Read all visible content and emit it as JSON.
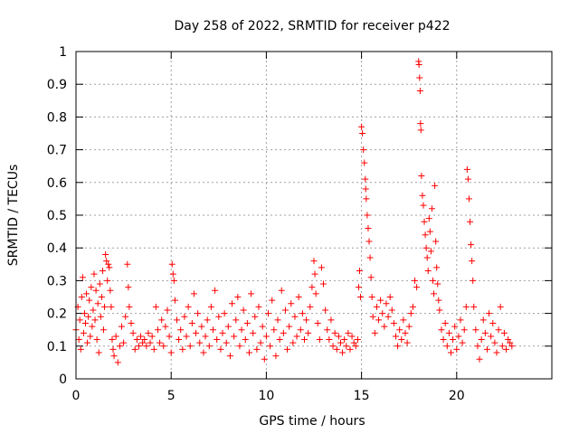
{
  "chart_data": {
    "type": "scatter",
    "title": "Day 258 of 2022, SRMTID for receiver p422",
    "xlabel": "GPS time / hours",
    "ylabel": "SRMTID / TECUs",
    "xlim": [
      0,
      25
    ],
    "ylim": [
      0,
      1
    ],
    "xticks": [
      0,
      5,
      10,
      15,
      20
    ],
    "xtick_labels": [
      "0",
      "5",
      "10",
      "15",
      "20"
    ],
    "yticks": [
      0,
      0.1,
      0.2,
      0.3,
      0.4,
      0.5,
      0.6,
      0.7,
      0.8,
      0.9,
      1
    ],
    "ytick_labels": [
      "0",
      "0.1",
      "0.2",
      "0.3",
      "0.4",
      "0.5",
      "0.6",
      "0.7",
      "0.8",
      "0.9",
      "1"
    ],
    "grid": true,
    "marker": "+",
    "color": "#ff0000",
    "series": [
      {
        "name": "SRMTID",
        "points": [
          [
            0.0,
            0.15
          ],
          [
            0.1,
            0.22
          ],
          [
            0.15,
            0.12
          ],
          [
            0.2,
            0.18
          ],
          [
            0.25,
            0.09
          ],
          [
            0.3,
            0.25
          ],
          [
            0.35,
            0.31
          ],
          [
            0.4,
            0.14
          ],
          [
            0.45,
            0.2
          ],
          [
            0.5,
            0.17
          ],
          [
            0.55,
            0.26
          ],
          [
            0.6,
            0.11
          ],
          [
            0.65,
            0.19
          ],
          [
            0.7,
            0.24
          ],
          [
            0.75,
            0.13
          ],
          [
            0.8,
            0.28
          ],
          [
            0.85,
            0.16
          ],
          [
            0.9,
            0.21
          ],
          [
            0.95,
            0.32
          ],
          [
            1.0,
            0.18
          ],
          [
            1.05,
            0.27
          ],
          [
            1.1,
            0.12
          ],
          [
            1.15,
            0.23
          ],
          [
            1.2,
            0.08
          ],
          [
            1.25,
            0.29
          ],
          [
            1.3,
            0.19
          ],
          [
            1.35,
            0.25
          ],
          [
            1.4,
            0.33
          ],
          [
            1.45,
            0.15
          ],
          [
            1.5,
            0.22
          ],
          [
            1.55,
            0.38
          ],
          [
            1.6,
            0.36
          ],
          [
            1.65,
            0.3
          ],
          [
            1.7,
            0.35
          ],
          [
            1.75,
            0.34
          ],
          [
            1.8,
            0.27
          ],
          [
            1.85,
            0.22
          ],
          [
            1.9,
            0.12
          ],
          [
            1.95,
            0.09
          ],
          [
            2.0,
            0.07
          ],
          [
            2.1,
            0.13
          ],
          [
            2.2,
            0.05
          ],
          [
            2.3,
            0.1
          ],
          [
            2.4,
            0.16
          ],
          [
            2.5,
            0.11
          ],
          [
            2.6,
            0.19
          ],
          [
            2.7,
            0.35
          ],
          [
            2.75,
            0.28
          ],
          [
            2.8,
            0.22
          ],
          [
            2.9,
            0.17
          ],
          [
            3.0,
            0.14
          ],
          [
            3.1,
            0.09
          ],
          [
            3.2,
            0.12
          ],
          [
            3.3,
            0.1
          ],
          [
            3.4,
            0.13
          ],
          [
            3.5,
            0.11
          ],
          [
            3.6,
            0.12
          ],
          [
            3.7,
            0.1
          ],
          [
            3.8,
            0.14
          ],
          [
            3.9,
            0.11
          ],
          [
            4.0,
            0.13
          ],
          [
            4.1,
            0.09
          ],
          [
            4.2,
            0.22
          ],
          [
            4.3,
            0.15
          ],
          [
            4.4,
            0.11
          ],
          [
            4.5,
            0.18
          ],
          [
            4.6,
            0.1
          ],
          [
            4.7,
            0.16
          ],
          [
            4.8,
            0.21
          ],
          [
            4.9,
            0.13
          ],
          [
            5.0,
            0.08
          ],
          [
            5.05,
            0.35
          ],
          [
            5.1,
            0.32
          ],
          [
            5.15,
            0.3
          ],
          [
            5.2,
            0.24
          ],
          [
            5.3,
            0.18
          ],
          [
            5.4,
            0.12
          ],
          [
            5.5,
            0.15
          ],
          [
            5.6,
            0.09
          ],
          [
            5.7,
            0.19
          ],
          [
            5.8,
            0.13
          ],
          [
            5.9,
            0.22
          ],
          [
            6.0,
            0.1
          ],
          [
            6.1,
            0.17
          ],
          [
            6.2,
            0.26
          ],
          [
            6.3,
            0.14
          ],
          [
            6.4,
            0.2
          ],
          [
            6.5,
            0.11
          ],
          [
            6.6,
            0.16
          ],
          [
            6.7,
            0.08
          ],
          [
            6.8,
            0.13
          ],
          [
            6.9,
            0.18
          ],
          [
            7.0,
            0.1
          ],
          [
            7.1,
            0.22
          ],
          [
            7.2,
            0.15
          ],
          [
            7.3,
            0.27
          ],
          [
            7.4,
            0.12
          ],
          [
            7.5,
            0.19
          ],
          [
            7.6,
            0.09
          ],
          [
            7.7,
            0.14
          ],
          [
            7.8,
            0.2
          ],
          [
            7.9,
            0.11
          ],
          [
            8.0,
            0.16
          ],
          [
            8.1,
            0.07
          ],
          [
            8.2,
            0.23
          ],
          [
            8.3,
            0.13
          ],
          [
            8.4,
            0.18
          ],
          [
            8.5,
            0.25
          ],
          [
            8.6,
            0.1
          ],
          [
            8.7,
            0.15
          ],
          [
            8.8,
            0.21
          ],
          [
            8.9,
            0.12
          ],
          [
            9.0,
            0.17
          ],
          [
            9.1,
            0.08
          ],
          [
            9.2,
            0.26
          ],
          [
            9.3,
            0.14
          ],
          [
            9.4,
            0.19
          ],
          [
            9.5,
            0.09
          ],
          [
            9.6,
            0.22
          ],
          [
            9.7,
            0.11
          ],
          [
            9.8,
            0.16
          ],
          [
            9.9,
            0.06
          ],
          [
            10.0,
            0.13
          ],
          [
            10.1,
            0.2
          ],
          [
            10.2,
            0.1
          ],
          [
            10.3,
            0.24
          ],
          [
            10.4,
            0.15
          ],
          [
            10.5,
            0.07
          ],
          [
            10.6,
            0.18
          ],
          [
            10.7,
            0.12
          ],
          [
            10.8,
            0.27
          ],
          [
            10.9,
            0.14
          ],
          [
            11.0,
            0.21
          ],
          [
            11.1,
            0.09
          ],
          [
            11.2,
            0.16
          ],
          [
            11.3,
            0.23
          ],
          [
            11.4,
            0.11
          ],
          [
            11.5,
            0.19
          ],
          [
            11.6,
            0.13
          ],
          [
            11.7,
            0.25
          ],
          [
            11.8,
            0.15
          ],
          [
            11.9,
            0.2
          ],
          [
            12.0,
            0.12
          ],
          [
            12.1,
            0.18
          ],
          [
            12.2,
            0.14
          ],
          [
            12.3,
            0.22
          ],
          [
            12.4,
            0.28
          ],
          [
            12.5,
            0.36
          ],
          [
            12.55,
            0.32
          ],
          [
            12.6,
            0.26
          ],
          [
            12.7,
            0.17
          ],
          [
            12.8,
            0.12
          ],
          [
            12.9,
            0.34
          ],
          [
            13.0,
            0.29
          ],
          [
            13.1,
            0.21
          ],
          [
            13.2,
            0.15
          ],
          [
            13.3,
            0.12
          ],
          [
            13.4,
            0.18
          ],
          [
            13.5,
            0.1
          ],
          [
            13.6,
            0.14
          ],
          [
            13.7,
            0.09
          ],
          [
            13.8,
            0.13
          ],
          [
            13.9,
            0.11
          ],
          [
            14.0,
            0.08
          ],
          [
            14.1,
            0.12
          ],
          [
            14.2,
            0.1
          ],
          [
            14.3,
            0.14
          ],
          [
            14.4,
            0.09
          ],
          [
            14.5,
            0.13
          ],
          [
            14.6,
            0.11
          ],
          [
            14.7,
            0.1
          ],
          [
            14.8,
            0.12
          ],
          [
            14.85,
            0.28
          ],
          [
            14.9,
            0.33
          ],
          [
            14.95,
            0.25
          ],
          [
            15.0,
            0.77
          ],
          [
            15.05,
            0.75
          ],
          [
            15.1,
            0.7
          ],
          [
            15.15,
            0.66
          ],
          [
            15.2,
            0.61
          ],
          [
            15.22,
            0.58
          ],
          [
            15.25,
            0.55
          ],
          [
            15.3,
            0.5
          ],
          [
            15.35,
            0.46
          ],
          [
            15.4,
            0.42
          ],
          [
            15.45,
            0.37
          ],
          [
            15.5,
            0.31
          ],
          [
            15.55,
            0.25
          ],
          [
            15.6,
            0.19
          ],
          [
            15.7,
            0.14
          ],
          [
            15.8,
            0.22
          ],
          [
            15.9,
            0.18
          ],
          [
            16.0,
            0.24
          ],
          [
            16.1,
            0.2
          ],
          [
            16.2,
            0.16
          ],
          [
            16.3,
            0.23
          ],
          [
            16.4,
            0.19
          ],
          [
            16.5,
            0.25
          ],
          [
            16.6,
            0.21
          ],
          [
            16.7,
            0.17
          ],
          [
            16.8,
            0.13
          ],
          [
            16.9,
            0.1
          ],
          [
            17.0,
            0.15
          ],
          [
            17.1,
            0.12
          ],
          [
            17.2,
            0.18
          ],
          [
            17.3,
            0.14
          ],
          [
            17.4,
            0.11
          ],
          [
            17.5,
            0.16
          ],
          [
            17.6,
            0.2
          ],
          [
            17.7,
            0.22
          ],
          [
            17.8,
            0.3
          ],
          [
            17.9,
            0.28
          ],
          [
            18.0,
            0.97
          ],
          [
            18.02,
            0.96
          ],
          [
            18.05,
            0.92
          ],
          [
            18.08,
            0.88
          ],
          [
            18.1,
            0.78
          ],
          [
            18.12,
            0.76
          ],
          [
            18.15,
            0.62
          ],
          [
            18.2,
            0.56
          ],
          [
            18.25,
            0.53
          ],
          [
            18.3,
            0.48
          ],
          [
            18.35,
            0.44
          ],
          [
            18.4,
            0.4
          ],
          [
            18.45,
            0.37
          ],
          [
            18.5,
            0.33
          ],
          [
            18.55,
            0.49
          ],
          [
            18.6,
            0.45
          ],
          [
            18.65,
            0.39
          ],
          [
            18.7,
            0.52
          ],
          [
            18.75,
            0.3
          ],
          [
            18.8,
            0.26
          ],
          [
            18.85,
            0.59
          ],
          [
            18.9,
            0.42
          ],
          [
            18.95,
            0.34
          ],
          [
            19.0,
            0.29
          ],
          [
            19.05,
            0.24
          ],
          [
            19.1,
            0.21
          ],
          [
            19.2,
            0.15
          ],
          [
            19.3,
            0.12
          ],
          [
            19.4,
            0.17
          ],
          [
            19.5,
            0.1
          ],
          [
            19.6,
            0.14
          ],
          [
            19.7,
            0.08
          ],
          [
            19.8,
            0.12
          ],
          [
            19.9,
            0.16
          ],
          [
            20.0,
            0.09
          ],
          [
            20.1,
            0.13
          ],
          [
            20.2,
            0.18
          ],
          [
            20.3,
            0.11
          ],
          [
            20.4,
            0.15
          ],
          [
            20.5,
            0.22
          ],
          [
            20.55,
            0.64
          ],
          [
            20.6,
            0.61
          ],
          [
            20.65,
            0.55
          ],
          [
            20.7,
            0.48
          ],
          [
            20.75,
            0.41
          ],
          [
            20.8,
            0.36
          ],
          [
            20.85,
            0.3
          ],
          [
            20.9,
            0.22
          ],
          [
            21.0,
            0.15
          ],
          [
            21.1,
            0.1
          ],
          [
            21.2,
            0.06
          ],
          [
            21.3,
            0.12
          ],
          [
            21.4,
            0.18
          ],
          [
            21.5,
            0.14
          ],
          [
            21.6,
            0.09
          ],
          [
            21.7,
            0.2
          ],
          [
            21.8,
            0.13
          ],
          [
            21.9,
            0.17
          ],
          [
            22.0,
            0.11
          ],
          [
            22.1,
            0.08
          ],
          [
            22.2,
            0.15
          ],
          [
            22.3,
            0.22
          ],
          [
            22.4,
            0.1
          ],
          [
            22.5,
            0.14
          ],
          [
            22.6,
            0.09
          ],
          [
            22.7,
            0.12
          ],
          [
            22.8,
            0.11
          ],
          [
            22.9,
            0.1
          ]
        ]
      }
    ]
  }
}
